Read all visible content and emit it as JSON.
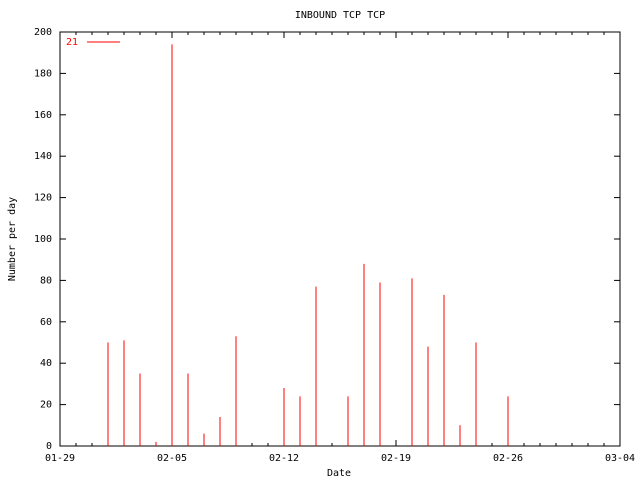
{
  "chart_data": {
    "type": "impulse",
    "title": "INBOUND TCP TCP",
    "x_label": "Date",
    "y_label": "Number per day",
    "x": [
      "02-01",
      "02-02",
      "02-03",
      "02-04",
      "02-05",
      "02-06",
      "02-07",
      "02-08",
      "02-09",
      "02-12",
      "02-13",
      "02-14",
      "02-16",
      "02-17",
      "02-18",
      "02-20",
      "02-21",
      "02-22",
      "02-23",
      "02-24",
      "02-26"
    ],
    "series": [
      {
        "name": "21",
        "color": "#ff0000",
        "values": [
          50,
          51,
          35,
          2,
          194,
          35,
          6,
          14,
          53,
          28,
          24,
          77,
          24,
          88,
          79,
          81,
          48,
          73,
          10,
          50,
          24
        ]
      }
    ],
    "xlim": [
      "01-29",
      "03-04"
    ],
    "xticks": [
      "01-29",
      "02-05",
      "02-12",
      "02-19",
      "02-26",
      "03-04"
    ],
    "ylim": [
      0,
      200
    ],
    "yticks": [
      0,
      20,
      40,
      60,
      80,
      100,
      120,
      140,
      160,
      180,
      200
    ],
    "legend": "top-left"
  }
}
